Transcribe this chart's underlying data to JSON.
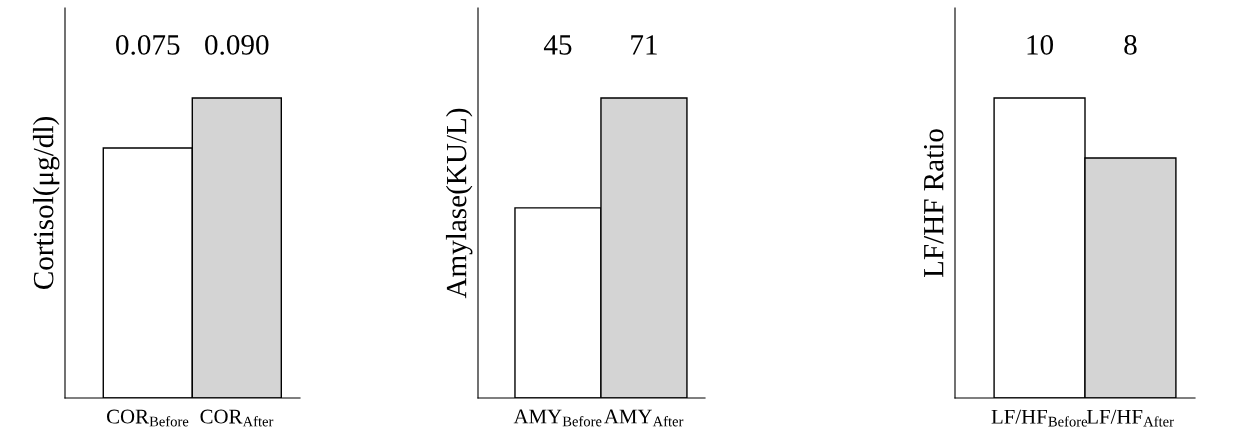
{
  "chart_data": [
    {
      "type": "bar",
      "ylabel": "Cortisol(μg/dl)",
      "categories": [
        "COR$_{Before}$",
        "COR$_{After}$"
      ],
      "values": [
        0.075,
        0.09
      ],
      "colors": [
        "#ffffff",
        "#d4d4d4"
      ],
      "data_labels": true,
      "value_labels": [
        "0.075",
        "0.090"
      ]
    },
    {
      "type": "bar",
      "ylabel": "Amylase(KU/L)",
      "categories": [
        "AMY$_{Before}$",
        "AMY$_{After}$"
      ],
      "values": [
        45,
        71
      ],
      "colors": [
        "#ffffff",
        "#d4d4d4"
      ],
      "data_labels": true
    },
    {
      "type": "bar",
      "ylabel": "LF/HF Ratio",
      "categories": [
        "LF/HF$_{Before}$",
        "LF/HF$_{After}$"
      ],
      "values": [
        10,
        8
      ],
      "colors": [
        "#ffffff",
        "#d4d4d4"
      ],
      "data_labels": true
    }
  ]
}
